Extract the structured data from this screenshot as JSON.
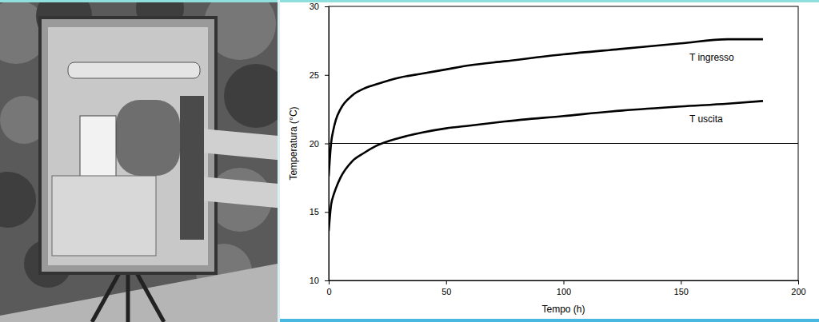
{
  "chart_data": {
    "type": "line",
    "x_label": "Tempo (h)",
    "y_label": "Temperatura (°C)",
    "xlim": [
      0,
      200
    ],
    "xticks": [
      0,
      50,
      100,
      150,
      200
    ],
    "ylim": [
      10,
      30
    ],
    "yticks": [
      10,
      15,
      20,
      25,
      30
    ],
    "grid": false,
    "reference_lines": [
      {
        "y": 20
      }
    ],
    "x": [
      0,
      1,
      2,
      3,
      5,
      10,
      15,
      20,
      30,
      40,
      50,
      60,
      75,
      100,
      125,
      150,
      170,
      185
    ],
    "series": [
      {
        "name": "T ingresso",
        "color": "#000000",
        "values": [
          17.6,
          20,
          21,
          21.7,
          22.5,
          23.5,
          24,
          24.3,
          24.8,
          25.1,
          25.4,
          25.7,
          26,
          26.5,
          26.9,
          27.3,
          27.6,
          27.6
        ]
      },
      {
        "name": "T uscita",
        "color": "#000000",
        "values": [
          13.6,
          15.5,
          16.2,
          16.7,
          17.5,
          18.7,
          19.3,
          19.8,
          20.4,
          20.8,
          21.1,
          21.3,
          21.6,
          22,
          22.4,
          22.7,
          22.9,
          23.1
        ]
      }
    ]
  }
}
